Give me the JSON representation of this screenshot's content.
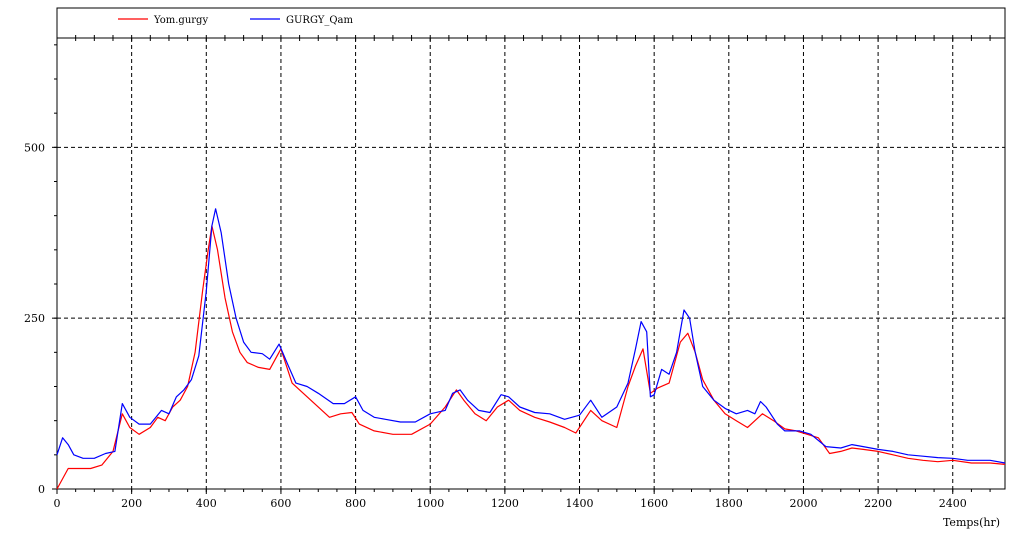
{
  "chart_data": {
    "type": "line",
    "xlabel": "Temps(hr)",
    "ylabel": "",
    "xlim": [
      0,
      2540
    ],
    "ylim": [
      0,
      660
    ],
    "x_ticks": [
      0,
      200,
      400,
      600,
      800,
      1000,
      1200,
      1400,
      1600,
      1800,
      2000,
      2200,
      2400
    ],
    "y_ticks": [
      0,
      250,
      500
    ],
    "grid": true,
    "legend_position": "top-left",
    "series": [
      {
        "name": "Yom.gurgy",
        "color": "#ff0000",
        "points": [
          [
            0,
            0
          ],
          [
            30,
            30
          ],
          [
            60,
            30
          ],
          [
            90,
            30
          ],
          [
            120,
            35
          ],
          [
            150,
            55
          ],
          [
            175,
            110
          ],
          [
            195,
            90
          ],
          [
            220,
            80
          ],
          [
            250,
            90
          ],
          [
            270,
            105
          ],
          [
            290,
            100
          ],
          [
            310,
            120
          ],
          [
            330,
            130
          ],
          [
            350,
            150
          ],
          [
            370,
            200
          ],
          [
            390,
            290
          ],
          [
            405,
            350
          ],
          [
            415,
            385
          ],
          [
            430,
            350
          ],
          [
            450,
            280
          ],
          [
            470,
            230
          ],
          [
            490,
            200
          ],
          [
            510,
            185
          ],
          [
            540,
            178
          ],
          [
            570,
            175
          ],
          [
            600,
            205
          ],
          [
            630,
            155
          ],
          [
            660,
            140
          ],
          [
            690,
            125
          ],
          [
            730,
            105
          ],
          [
            760,
            110
          ],
          [
            790,
            112
          ],
          [
            810,
            95
          ],
          [
            850,
            85
          ],
          [
            900,
            80
          ],
          [
            950,
            80
          ],
          [
            1000,
            95
          ],
          [
            1040,
            120
          ],
          [
            1070,
            145
          ],
          [
            1090,
            130
          ],
          [
            1120,
            110
          ],
          [
            1150,
            100
          ],
          [
            1180,
            120
          ],
          [
            1210,
            130
          ],
          [
            1240,
            115
          ],
          [
            1280,
            105
          ],
          [
            1320,
            98
          ],
          [
            1360,
            90
          ],
          [
            1390,
            82
          ],
          [
            1430,
            115
          ],
          [
            1460,
            100
          ],
          [
            1500,
            90
          ],
          [
            1530,
            150
          ],
          [
            1550,
            180
          ],
          [
            1570,
            205
          ],
          [
            1590,
            140
          ],
          [
            1610,
            148
          ],
          [
            1640,
            155
          ],
          [
            1670,
            215
          ],
          [
            1690,
            228
          ],
          [
            1710,
            200
          ],
          [
            1730,
            160
          ],
          [
            1760,
            130
          ],
          [
            1790,
            110
          ],
          [
            1820,
            100
          ],
          [
            1850,
            90
          ],
          [
            1870,
            100
          ],
          [
            1890,
            110
          ],
          [
            1920,
            100
          ],
          [
            1950,
            88
          ],
          [
            1980,
            85
          ],
          [
            2010,
            80
          ],
          [
            2040,
            75
          ],
          [
            2070,
            52
          ],
          [
            2100,
            55
          ],
          [
            2130,
            60
          ],
          [
            2160,
            58
          ],
          [
            2200,
            55
          ],
          [
            2240,
            50
          ],
          [
            2280,
            45
          ],
          [
            2320,
            42
          ],
          [
            2360,
            40
          ],
          [
            2400,
            42
          ],
          [
            2450,
            38
          ],
          [
            2500,
            38
          ],
          [
            2540,
            36
          ]
        ]
      },
      {
        "name": "GURGY_Qam",
        "color": "#0000ff",
        "points": [
          [
            0,
            50
          ],
          [
            15,
            75
          ],
          [
            30,
            65
          ],
          [
            45,
            50
          ],
          [
            70,
            45
          ],
          [
            100,
            45
          ],
          [
            130,
            52
          ],
          [
            155,
            55
          ],
          [
            175,
            125
          ],
          [
            195,
            105
          ],
          [
            220,
            95
          ],
          [
            250,
            95
          ],
          [
            280,
            115
          ],
          [
            300,
            110
          ],
          [
            320,
            135
          ],
          [
            340,
            145
          ],
          [
            360,
            160
          ],
          [
            380,
            195
          ],
          [
            400,
            290
          ],
          [
            415,
            385
          ],
          [
            425,
            410
          ],
          [
            440,
            375
          ],
          [
            460,
            300
          ],
          [
            480,
            250
          ],
          [
            500,
            215
          ],
          [
            520,
            200
          ],
          [
            550,
            198
          ],
          [
            570,
            190
          ],
          [
            595,
            212
          ],
          [
            620,
            180
          ],
          [
            640,
            155
          ],
          [
            670,
            150
          ],
          [
            700,
            140
          ],
          [
            740,
            125
          ],
          [
            770,
            125
          ],
          [
            800,
            135
          ],
          [
            820,
            115
          ],
          [
            850,
            105
          ],
          [
            880,
            102
          ],
          [
            920,
            98
          ],
          [
            960,
            98
          ],
          [
            1000,
            110
          ],
          [
            1040,
            115
          ],
          [
            1060,
            140
          ],
          [
            1080,
            145
          ],
          [
            1100,
            130
          ],
          [
            1130,
            115
          ],
          [
            1160,
            112
          ],
          [
            1190,
            138
          ],
          [
            1210,
            135
          ],
          [
            1240,
            120
          ],
          [
            1280,
            112
          ],
          [
            1320,
            110
          ],
          [
            1360,
            102
          ],
          [
            1400,
            108
          ],
          [
            1430,
            130
          ],
          [
            1460,
            105
          ],
          [
            1500,
            120
          ],
          [
            1530,
            155
          ],
          [
            1550,
            205
          ],
          [
            1565,
            245
          ],
          [
            1580,
            230
          ],
          [
            1590,
            135
          ],
          [
            1600,
            138
          ],
          [
            1620,
            175
          ],
          [
            1640,
            168
          ],
          [
            1660,
            200
          ],
          [
            1680,
            262
          ],
          [
            1695,
            250
          ],
          [
            1710,
            200
          ],
          [
            1730,
            150
          ],
          [
            1760,
            130
          ],
          [
            1790,
            118
          ],
          [
            1820,
            110
          ],
          [
            1850,
            115
          ],
          [
            1870,
            110
          ],
          [
            1885,
            128
          ],
          [
            1900,
            120
          ],
          [
            1930,
            95
          ],
          [
            1950,
            85
          ],
          [
            1990,
            85
          ],
          [
            2020,
            80
          ],
          [
            2060,
            62
          ],
          [
            2100,
            60
          ],
          [
            2130,
            65
          ],
          [
            2160,
            62
          ],
          [
            2200,
            58
          ],
          [
            2240,
            55
          ],
          [
            2280,
            50
          ],
          [
            2320,
            48
          ],
          [
            2360,
            46
          ],
          [
            2400,
            45
          ],
          [
            2440,
            42
          ],
          [
            2500,
            42
          ],
          [
            2540,
            38
          ]
        ]
      }
    ]
  }
}
